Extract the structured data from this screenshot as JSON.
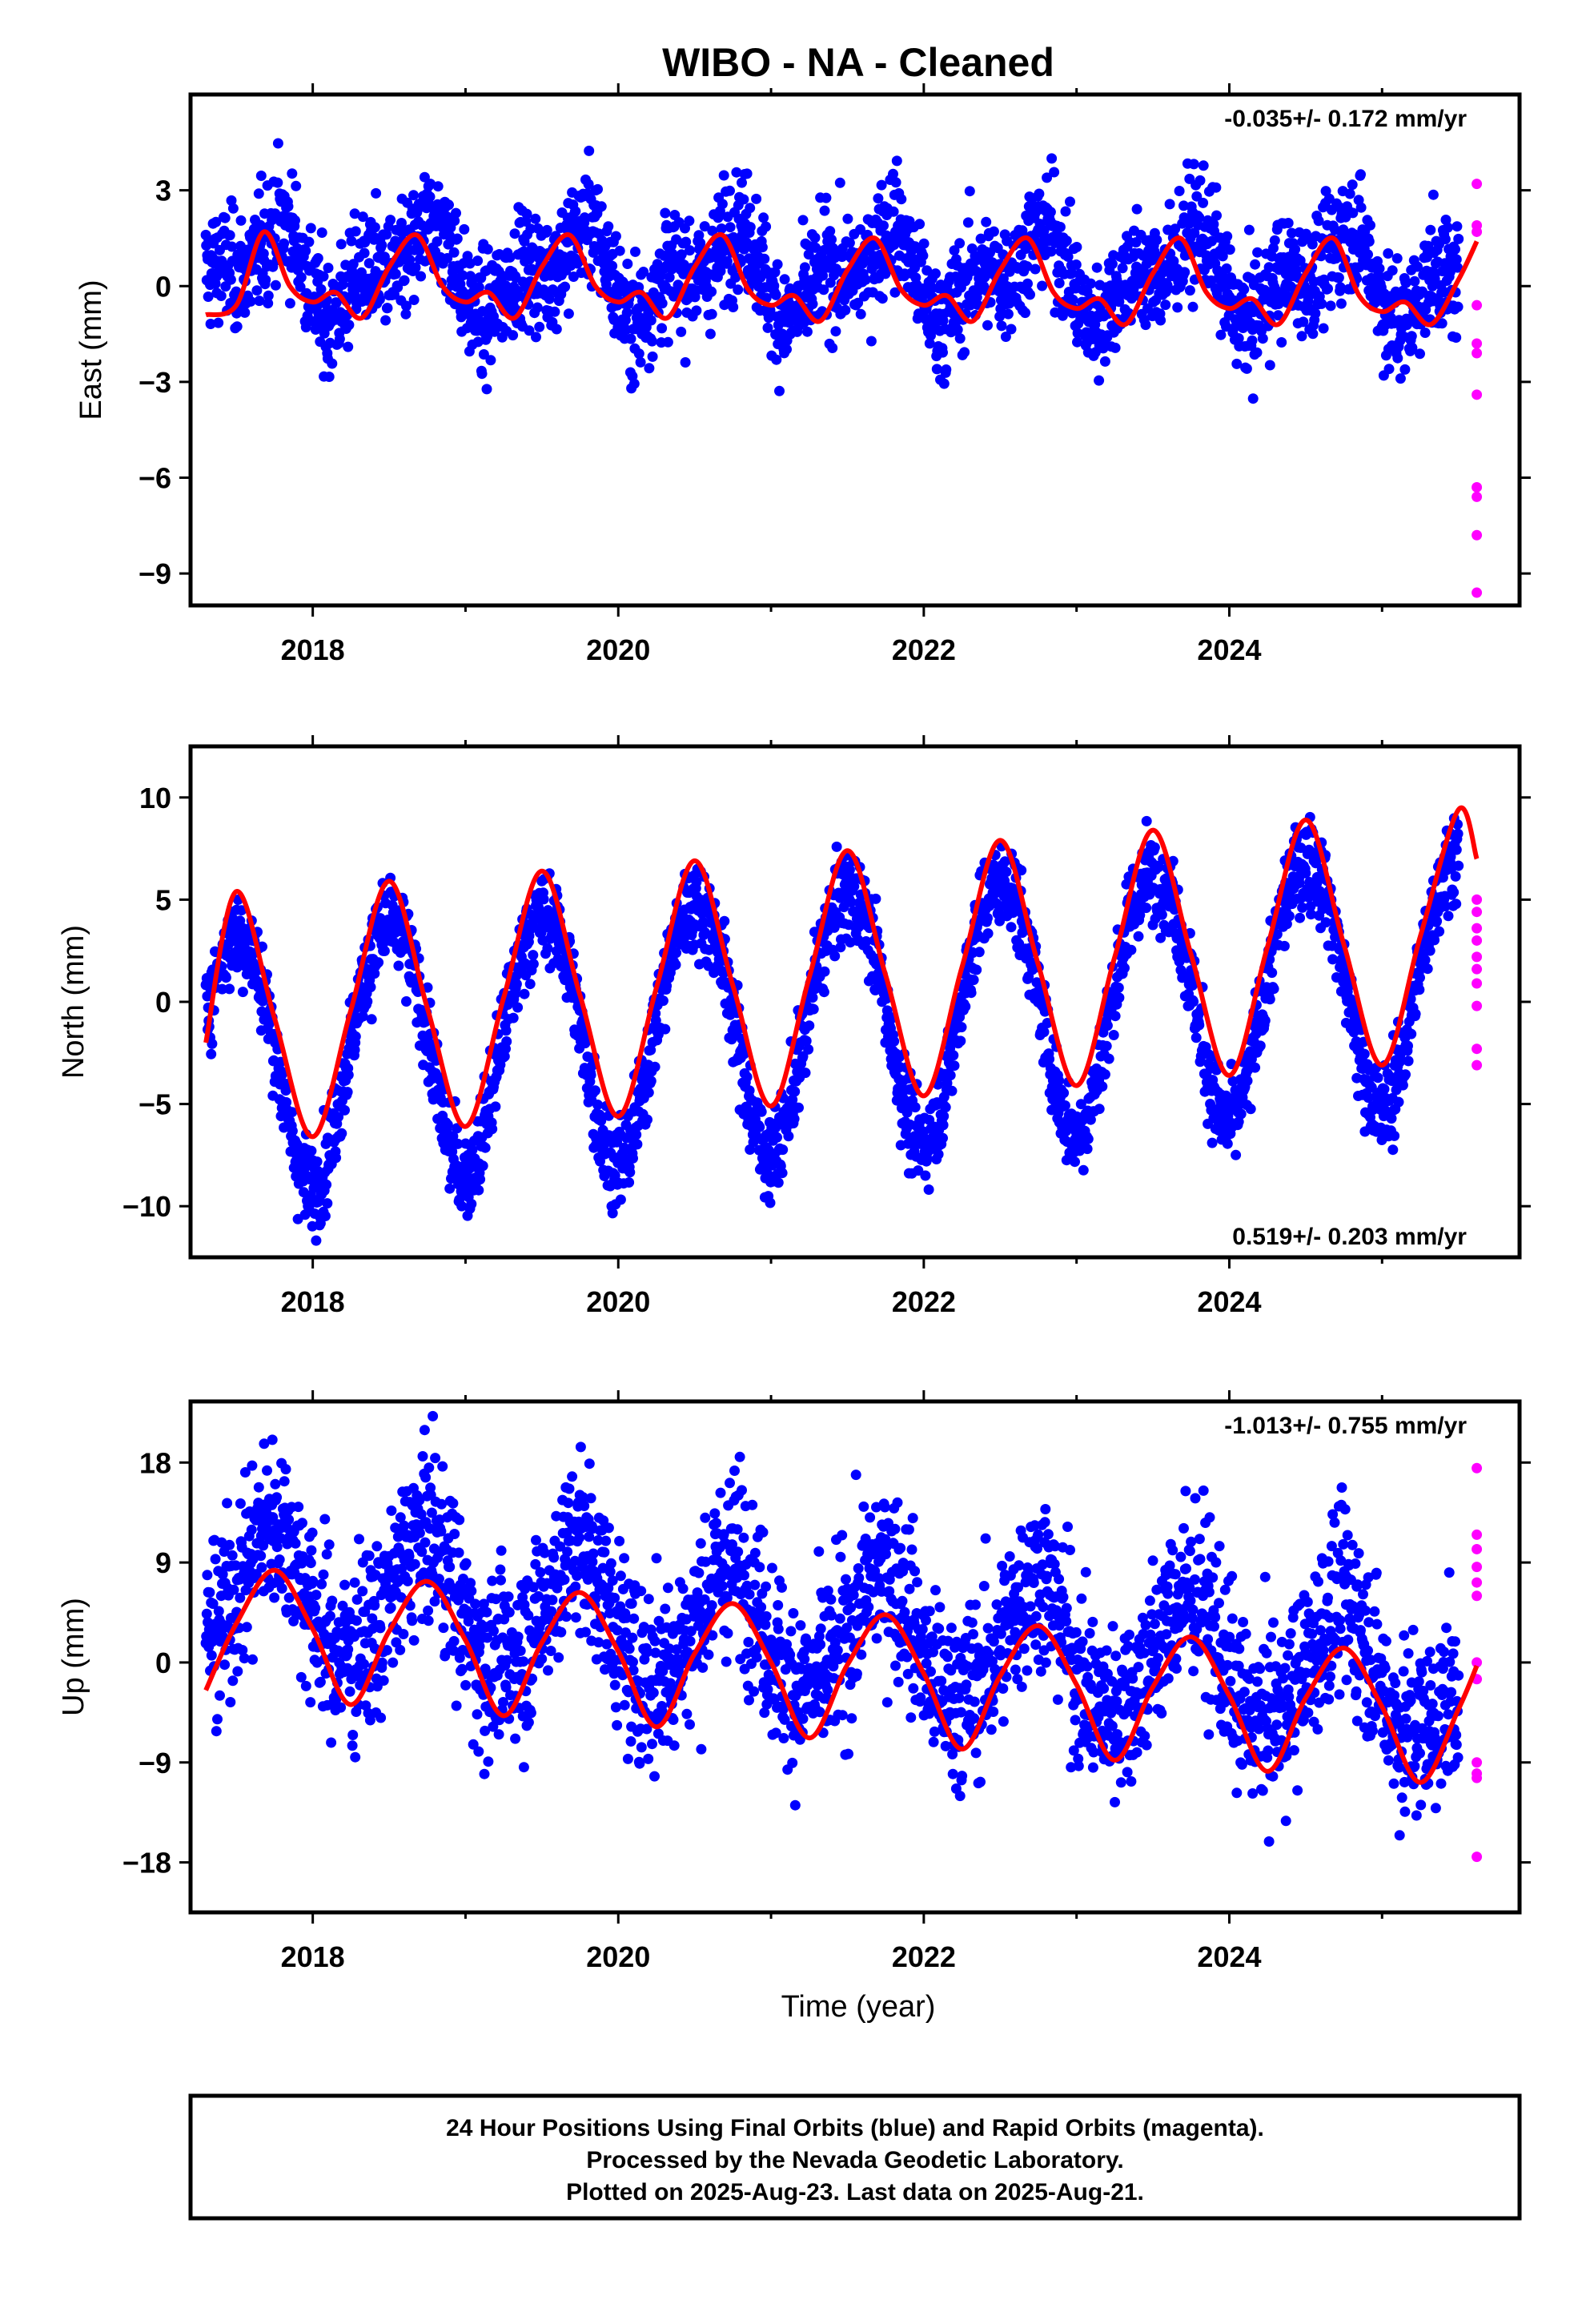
{
  "title": "WIBO  - NA - Cleaned",
  "colors": {
    "final": "#0000ff",
    "rapid": "#ff00ff",
    "model": "#ff0000",
    "axis": "#000000"
  },
  "xlabel": "Time (year)",
  "xticks": [
    2018,
    2020,
    2022,
    2024
  ],
  "footer": {
    "line1": "24 Hour Positions Using Final Orbits (blue) and Rapid Orbits (magenta).",
    "line2": "Processed by the Nevada Geodetic Laboratory.",
    "line3": "Plotted on 2025-Aug-23. Last data on 2025-Aug-21."
  },
  "chart_data": [
    {
      "type": "scatter",
      "component": "east",
      "ylabel": "East (mm)",
      "rate_label": "-0.035+/- 0.172 mm/yr",
      "rate_position": "top-right",
      "xlim": [
        2017.2,
        2025.9
      ],
      "ylim": [
        -10,
        6
      ],
      "yticks": [
        3,
        0,
        -3,
        -6,
        -9
      ],
      "ytick_labels": [
        "3",
        "0",
        "−3",
        "−6",
        "−9"
      ],
      "series": [
        {
          "name": "Final Orbits",
          "color": "blue",
          "x_range": [
            2017.3,
            2025.5
          ],
          "trend_mm_per_yr": -0.035,
          "offset_mm": 0.4,
          "annual_amp_mm": 1.0,
          "annual_phase_yr": 0.45,
          "semiannual_amp_mm": 0.7,
          "semiannual_phase_yr": 0.2,
          "scatter_sd_mm": 0.9
        },
        {
          "name": "Rapid Orbits",
          "color": "magenta",
          "x": [
            2025.62,
            2025.62,
            2025.62,
            2025.62,
            2025.62,
            2025.62,
            2025.62,
            2025.62,
            2025.62,
            2025.62,
            2025.62
          ],
          "y": [
            3.2,
            1.9,
            1.7,
            -0.6,
            -1.8,
            -2.1,
            -3.4,
            -6.3,
            -6.6,
            -7.8,
            -9.6
          ]
        }
      ],
      "model": {
        "name": "Model",
        "color": "red",
        "x": [
          2017.3,
          2017.5,
          2017.68,
          2017.85,
          2018.0,
          2018.15,
          2018.32,
          2018.5,
          2018.68,
          2018.85,
          2019.0,
          2019.15,
          2019.32,
          2019.5,
          2019.68,
          2019.85,
          2020.0,
          2020.15,
          2020.32,
          2020.5,
          2020.68,
          2020.85,
          2021.0,
          2021.15,
          2021.32,
          2021.5,
          2021.68,
          2021.85,
          2022.0,
          2022.15,
          2022.32,
          2022.5,
          2022.68,
          2022.85,
          2023.0,
          2023.15,
          2023.32,
          2023.5,
          2023.68,
          2023.85,
          2024.0,
          2024.15,
          2024.32,
          2024.5,
          2024.68,
          2024.85,
          2025.0,
          2025.15,
          2025.32,
          2025.5,
          2025.62
        ],
        "y": [
          -0.9,
          -0.6,
          1.7,
          0.0,
          -0.5,
          -0.2,
          -1.0,
          0.6,
          1.6,
          0.0,
          -0.5,
          -0.2,
          -1.0,
          0.6,
          1.6,
          0.0,
          -0.5,
          -0.2,
          -1.0,
          0.6,
          1.6,
          -0.1,
          -0.6,
          -0.3,
          -1.1,
          0.5,
          1.5,
          -0.1,
          -0.6,
          -0.3,
          -1.1,
          0.5,
          1.5,
          -0.2,
          -0.7,
          -0.4,
          -1.2,
          0.4,
          1.5,
          -0.2,
          -0.7,
          -0.4,
          -1.2,
          0.4,
          1.5,
          -0.3,
          -0.8,
          -0.5,
          -1.2,
          0.2,
          1.4
        ]
      }
    },
    {
      "type": "scatter",
      "component": "north",
      "ylabel": "North (mm)",
      "rate_label": "0.519+/- 0.203 mm/yr",
      "rate_position": "bottom-right",
      "xlim": [
        2017.2,
        2025.9
      ],
      "ylim": [
        -12.5,
        12.5
      ],
      "yticks": [
        10,
        5,
        0,
        -5,
        -10
      ],
      "ytick_labels": [
        "10",
        "5",
        "0",
        "−5",
        "−10"
      ],
      "series": [
        {
          "name": "Final Orbits",
          "color": "blue",
          "x_range": [
            2017.3,
            2025.5
          ],
          "trend_mm_per_yr": 0.519,
          "offset_mm": -0.6,
          "annual_amp_mm": 6.2,
          "annual_phase_yr": 0.25,
          "semiannual_amp_mm": 0.4,
          "semiannual_phase_yr": 0.1,
          "scatter_sd_mm": 1.1
        },
        {
          "name": "Rapid Orbits",
          "color": "magenta",
          "x": [
            2025.62,
            2025.62,
            2025.62,
            2025.62,
            2025.62,
            2025.62,
            2025.62,
            2025.62,
            2025.62,
            2025.62
          ],
          "y": [
            5.0,
            4.4,
            3.6,
            3.0,
            2.2,
            1.6,
            0.9,
            -0.2,
            -2.3,
            -3.1
          ]
        }
      ],
      "model": {
        "name": "Model",
        "color": "red",
        "x": [
          2017.3,
          2017.5,
          2017.75,
          2018.0,
          2018.25,
          2018.5,
          2018.75,
          2019.0,
          2019.25,
          2019.5,
          2019.75,
          2020.0,
          2020.25,
          2020.5,
          2020.75,
          2021.0,
          2021.25,
          2021.5,
          2021.75,
          2022.0,
          2022.25,
          2022.5,
          2022.75,
          2023.0,
          2023.25,
          2023.5,
          2023.75,
          2024.0,
          2024.25,
          2024.5,
          2024.75,
          2025.0,
          2025.25,
          2025.5,
          2025.62
        ],
        "y": [
          -2.0,
          5.4,
          -0.8,
          -6.6,
          -0.4,
          5.9,
          -0.3,
          -6.1,
          0.2,
          6.4,
          0.3,
          -5.6,
          0.7,
          6.9,
          0.8,
          -5.1,
          1.2,
          7.4,
          1.3,
          -4.6,
          1.7,
          7.9,
          1.8,
          -4.1,
          2.2,
          8.4,
          2.3,
          -3.6,
          2.7,
          8.9,
          2.8,
          -3.1,
          3.2,
          9.4,
          7.0
        ]
      }
    },
    {
      "type": "scatter",
      "component": "up",
      "ylabel": "Up (mm)",
      "rate_label": "-1.013+/- 0.755 mm/yr",
      "rate_position": "top-right",
      "xlim": [
        2017.2,
        2025.9
      ],
      "ylim": [
        -22.5,
        23.5
      ],
      "yticks": [
        18,
        9,
        0,
        -9,
        -18
      ],
      "ytick_labels": [
        "18",
        "9",
        "0",
        "−9",
        "−18"
      ],
      "series": [
        {
          "name": "Final Orbits",
          "color": "blue",
          "x_range": [
            2017.3,
            2025.5
          ],
          "trend_mm_per_yr": -1.013,
          "offset_mm": 2.5,
          "annual_amp_mm": 5.6,
          "annual_phase_yr": 0.48,
          "semiannual_amp_mm": 0.8,
          "semiannual_phase_yr": 0.15,
          "scatter_sd_mm": 4.0
        },
        {
          "name": "Rapid Orbits",
          "color": "magenta",
          "x": [
            2025.62,
            2025.62,
            2025.62,
            2025.62,
            2025.62,
            2025.62,
            2025.62,
            2025.62,
            2025.62,
            2025.62,
            2025.62,
            2025.62
          ],
          "y": [
            17.5,
            11.5,
            10.2,
            8.6,
            7.2,
            6.0,
            0.0,
            -1.5,
            -9.0,
            -10.0,
            -10.4,
            -17.5
          ]
        }
      ],
      "model": {
        "name": "Model",
        "color": "red",
        "x": [
          2017.3,
          2017.5,
          2017.75,
          2018.0,
          2018.25,
          2018.5,
          2018.75,
          2019.0,
          2019.25,
          2019.5,
          2019.75,
          2020.0,
          2020.25,
          2020.5,
          2020.75,
          2021.0,
          2021.25,
          2021.5,
          2021.75,
          2022.0,
          2022.25,
          2022.5,
          2022.75,
          2023.0,
          2023.25,
          2023.5,
          2023.75,
          2024.0,
          2024.25,
          2024.5,
          2024.75,
          2025.0,
          2025.25,
          2025.5,
          2025.62
        ],
        "y": [
          -2.5,
          3.5,
          8.3,
          3.0,
          -3.8,
          2.8,
          7.3,
          2.0,
          -4.8,
          1.8,
          6.3,
          1.0,
          -5.8,
          0.8,
          5.3,
          0.0,
          -6.8,
          -0.2,
          4.3,
          -1.0,
          -7.8,
          -1.2,
          3.3,
          -2.0,
          -8.8,
          -2.2,
          2.3,
          -3.0,
          -9.8,
          -3.2,
          1.3,
          -4.0,
          -10.8,
          -4.2,
          -0.3
        ]
      }
    }
  ]
}
